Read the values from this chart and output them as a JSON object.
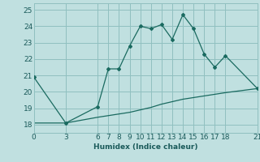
{
  "title": "",
  "xlabel": "Humidex (Indice chaleur)",
  "ylabel": "",
  "bg_color": "#c0e0e0",
  "grid_color": "#90c0c0",
  "line_color": "#1a6a60",
  "xlim": [
    0,
    21
  ],
  "ylim": [
    17.5,
    25.4
  ],
  "xticks": [
    0,
    3,
    6,
    7,
    8,
    9,
    10,
    11,
    12,
    13,
    14,
    15,
    16,
    17,
    18,
    21
  ],
  "yticks": [
    18,
    19,
    20,
    21,
    22,
    23,
    24,
    25
  ],
  "main_line_x": [
    0,
    3,
    6,
    7,
    8,
    9,
    10,
    11,
    12,
    13,
    14,
    15,
    16,
    17,
    18,
    21
  ],
  "main_line_y": [
    20.9,
    18.1,
    19.1,
    21.4,
    21.4,
    22.8,
    24.0,
    23.85,
    24.1,
    23.2,
    24.7,
    23.85,
    22.3,
    21.5,
    22.2,
    20.2
  ],
  "ref_line_x": [
    0,
    3,
    6,
    7,
    8,
    9,
    10,
    11,
    12,
    13,
    14,
    15,
    16,
    17,
    18,
    21
  ],
  "ref_line_y": [
    18.1,
    18.1,
    18.45,
    18.55,
    18.65,
    18.75,
    18.9,
    19.05,
    19.25,
    19.4,
    19.55,
    19.65,
    19.75,
    19.85,
    19.95,
    20.2
  ],
  "font_color": "#1a5a5a",
  "axis_fontsize": 6.5,
  "tick_fontsize": 6.5
}
